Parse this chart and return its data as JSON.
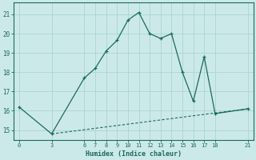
{
  "line1_x": [
    0,
    3,
    6,
    7,
    8,
    9,
    10,
    11,
    12,
    13,
    14,
    15,
    16,
    17,
    18,
    21
  ],
  "line1_y": [
    16.2,
    14.8,
    17.7,
    18.2,
    19.1,
    19.65,
    20.7,
    21.1,
    20.0,
    19.75,
    20.0,
    18.0,
    16.5,
    18.8,
    15.85,
    16.1
  ],
  "line2_x": [
    3,
    21
  ],
  "line2_y": [
    14.8,
    16.1
  ],
  "color": "#1a6b5a",
  "bg_color": "#cce9e9",
  "grid_color": "#aad4d4",
  "xlabel": "Humidex (Indice chaleur)",
  "xticks": [
    0,
    3,
    6,
    7,
    8,
    9,
    10,
    11,
    12,
    13,
    14,
    15,
    16,
    17,
    18,
    21
  ],
  "yticks": [
    15,
    16,
    17,
    18,
    19,
    20,
    21
  ],
  "xlim": [
    -0.5,
    21.5
  ],
  "ylim": [
    14.5,
    21.6
  ]
}
